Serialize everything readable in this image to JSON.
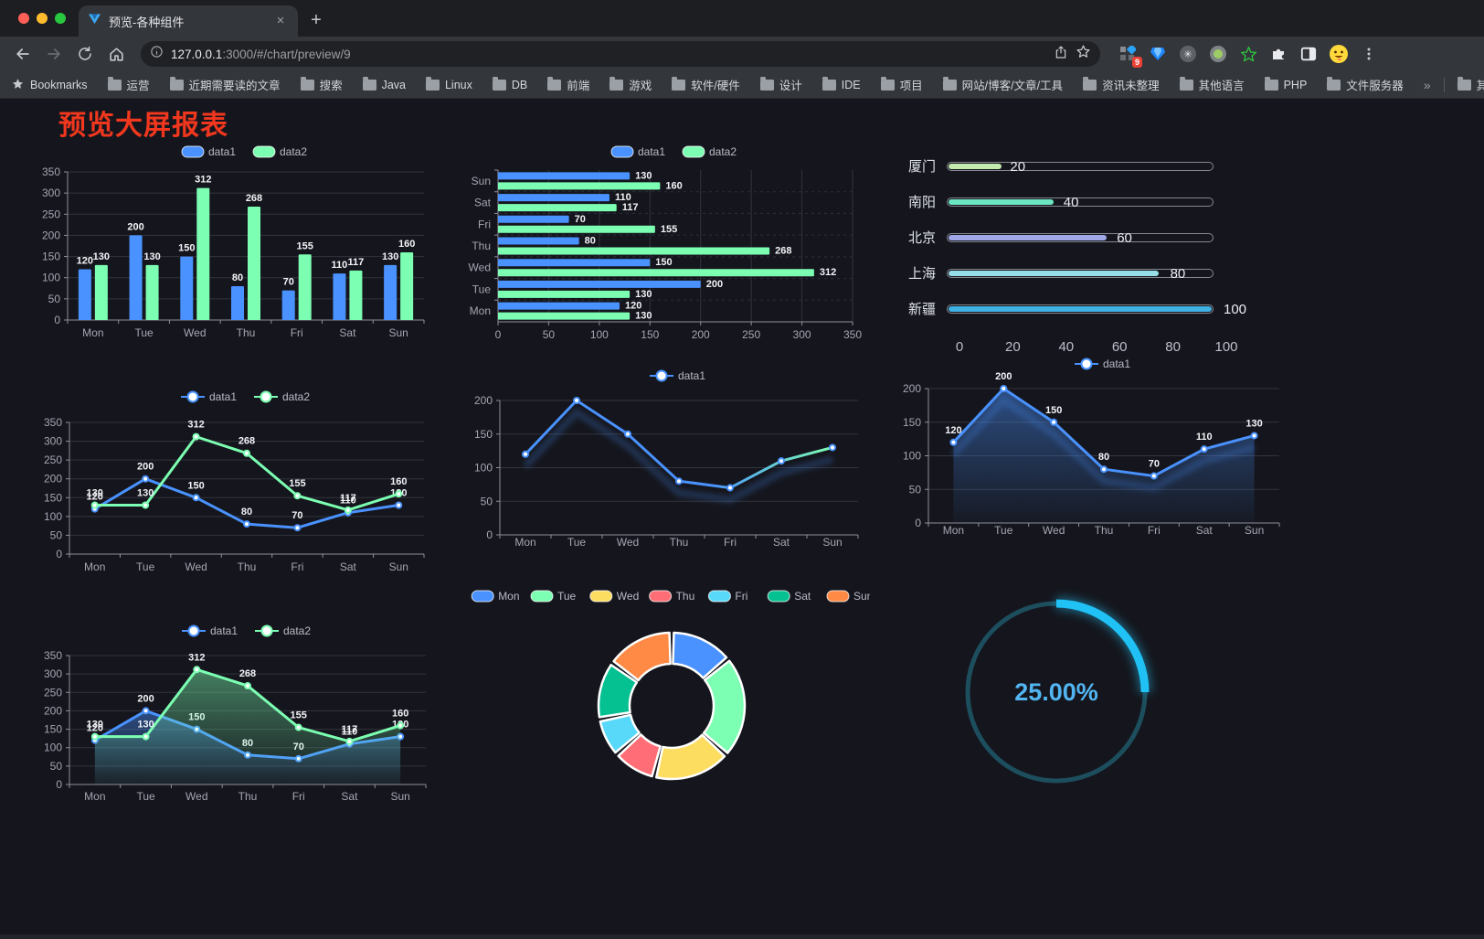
{
  "browser": {
    "tab": {
      "title": "预览-各种组件",
      "close_glyph": "×"
    },
    "new_tab_glyph": "+",
    "url": {
      "host": "127.0.0.1",
      "rest": ":3000/#/chart/preview/9"
    },
    "extension_badge": "9",
    "bookmarks_bar": {
      "manager_label": "Bookmarks",
      "folders": [
        "运营",
        "近期需要读的文章",
        "搜索",
        "Java",
        "Linux",
        "DB",
        "前端",
        "游戏",
        "软件/硬件",
        "设计",
        "IDE",
        "项目",
        "网站/博客/文章/工具",
        "资讯未整理",
        "其他语言",
        "PHP",
        "文件服务器"
      ],
      "overflow_glyph": "»",
      "other_bookmarks": "其他书签"
    }
  },
  "page": {
    "title": "预览大屏报表",
    "title_color": "#f1371e"
  },
  "palette": [
    "#4992ff",
    "#7cffb2",
    "#fddd60",
    "#ff6e76",
    "#58d9f9",
    "#05c091",
    "#ff8a45"
  ],
  "chart_data": [
    {
      "type": "bar",
      "legend": "rect",
      "categories": [
        "Mon",
        "Tue",
        "Wed",
        "Thu",
        "Fri",
        "Sat",
        "Sun"
      ],
      "ylim": [
        0,
        350
      ],
      "ystep": 50,
      "grid": true,
      "series": [
        {
          "name": "data1",
          "color": "#4992ff",
          "values": [
            120,
            200,
            150,
            80,
            70,
            110,
            130
          ],
          "labels": true
        },
        {
          "name": "data2",
          "color": "#7cffb2",
          "values": [
            130,
            130,
            312,
            268,
            155,
            117,
            160
          ],
          "labels": true
        }
      ]
    },
    {
      "type": "hbar",
      "legend": "rect",
      "categories": [
        "Mon",
        "Tue",
        "Wed",
        "Thu",
        "Fri",
        "Sat",
        "Sun"
      ],
      "xlim": [
        0,
        350
      ],
      "xstep": 50,
      "series": [
        {
          "name": "data1",
          "color": "#4992ff",
          "values": [
            120,
            200,
            150,
            80,
            70,
            110,
            130
          ],
          "labels": true
        },
        {
          "name": "data2",
          "color": "#7cffb2",
          "values": [
            130,
            130,
            312,
            268,
            155,
            117,
            160
          ],
          "labels": true
        }
      ]
    },
    {
      "type": "progress",
      "max": 100,
      "ticks": [
        0,
        20,
        40,
        60,
        80,
        100
      ],
      "rows": [
        {
          "label": "厦门",
          "value": 20,
          "color": "#c4ebad"
        },
        {
          "label": "南阳",
          "value": 40,
          "color": "#6be6c1"
        },
        {
          "label": "北京",
          "value": 60,
          "color": "#a0a7e6"
        },
        {
          "label": "上海",
          "value": 80,
          "color": "#96dee8"
        },
        {
          "label": "新疆",
          "value": 100,
          "color": "#3fb1e3"
        }
      ]
    },
    {
      "type": "line",
      "legend": "line",
      "categories": [
        "Mon",
        "Tue",
        "Wed",
        "Thu",
        "Fri",
        "Sat",
        "Sun"
      ],
      "ylim": [
        0,
        350
      ],
      "ystep": 50,
      "series": [
        {
          "name": "data1",
          "color": "#4992ff",
          "values": [
            120,
            200,
            150,
            80,
            70,
            110,
            130
          ],
          "markers": true,
          "labels": true
        },
        {
          "name": "data2",
          "color": "#7cffb2",
          "values": [
            130,
            130,
            312,
            268,
            155,
            117,
            160
          ],
          "markers": true,
          "labels": true
        }
      ]
    },
    {
      "type": "line",
      "legend": "line",
      "categories": [
        "Mon",
        "Tue",
        "Wed",
        "Thu",
        "Fri",
        "Sat",
        "Sun"
      ],
      "ylim": [
        0,
        200
      ],
      "ystep": 50,
      "series": [
        {
          "name": "data1",
          "color": "#4992ff",
          "color2": "#7cffb2",
          "gradient_stroke": true,
          "shadow": true,
          "values": [
            120,
            200,
            150,
            80,
            70,
            110,
            130
          ],
          "markers": true,
          "labels": false
        }
      ]
    },
    {
      "type": "line",
      "legend": "line",
      "categories": [
        "Mon",
        "Tue",
        "Wed",
        "Thu",
        "Fri",
        "Sat",
        "Sun"
      ],
      "ylim": [
        0,
        200
      ],
      "ystep": 50,
      "series": [
        {
          "name": "data1",
          "color": "#4992ff",
          "values": [
            120,
            200,
            150,
            80,
            70,
            110,
            130
          ],
          "markers": true,
          "labels": true,
          "area": true,
          "shadow": true
        }
      ]
    },
    {
      "type": "line",
      "legend": "line",
      "categories": [
        "Mon",
        "Tue",
        "Wed",
        "Thu",
        "Fri",
        "Sat",
        "Sun"
      ],
      "ylim": [
        0,
        350
      ],
      "ystep": 50,
      "series": [
        {
          "name": "data1",
          "color": "#4992ff",
          "values": [
            120,
            200,
            150,
            80,
            70,
            110,
            130
          ],
          "markers": true,
          "labels": true,
          "area": true
        },
        {
          "name": "data2",
          "color": "#7cffb2",
          "values": [
            130,
            130,
            312,
            268,
            155,
            117,
            160
          ],
          "markers": true,
          "labels": true,
          "area": true
        }
      ]
    },
    {
      "type": "donut",
      "categories": [
        "Mon",
        "Tue",
        "Wed",
        "Thu",
        "Fri",
        "Sat",
        "Sun"
      ],
      "values": [
        120,
        200,
        150,
        80,
        70,
        110,
        130
      ],
      "colors": [
        "#4992ff",
        "#7cffb2",
        "#fddd60",
        "#ff6e76",
        "#58d9f9",
        "#05c091",
        "#ff8a45"
      ]
    },
    {
      "type": "gauge",
      "value": 25,
      "display": "25.00%",
      "color": "#20c1f5",
      "track_color": "#1d4e5e",
      "text_color": "#52b5f2"
    }
  ]
}
